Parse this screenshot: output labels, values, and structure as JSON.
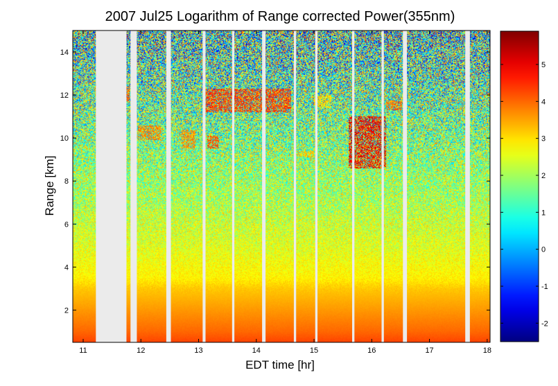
{
  "chart_data": {
    "type": "heatmap",
    "title": "2007 Jul25  Logarithm of Range corrected Power(355nm)",
    "xlabel": "EDT time [hr]",
    "ylabel": "Range [km]",
    "xlim": [
      10.82,
      18.05
    ],
    "ylim": [
      0.5,
      15.0
    ],
    "xticks": [
      "11",
      "12",
      "13",
      "14",
      "15",
      "16",
      "17",
      "18"
    ],
    "yticks": [
      "2",
      "4",
      "6",
      "8",
      "10",
      "12",
      "14"
    ],
    "colorbar": {
      "colormap": "jet",
      "clim": [
        -2.5,
        5.9
      ],
      "ticks": [
        "-2",
        "-1",
        "0",
        "1",
        "2",
        "3",
        "4",
        "5"
      ]
    },
    "no_data_intervals_hr": [
      [
        11.22,
        11.75
      ],
      [
        11.82,
        11.93
      ],
      [
        12.44,
        12.52
      ],
      [
        13.07,
        13.12
      ],
      [
        13.58,
        13.62
      ],
      [
        14.1,
        14.16
      ],
      [
        14.65,
        14.69
      ],
      [
        15.02,
        15.06
      ],
      [
        15.66,
        15.7
      ],
      [
        16.17,
        16.21
      ],
      [
        16.54,
        16.61
      ],
      [
        17.62,
        17.7
      ]
    ],
    "no_data_color": "#ebebeb",
    "value_profile": {
      "range_km": [
        0.5,
        1.0,
        1.5,
        2.0,
        2.5,
        3.0,
        3.5,
        4.0,
        5.0,
        6.0,
        7.0,
        8.0,
        9.0,
        10.0,
        11.0,
        12.0,
        13.0,
        14.0,
        15.0
      ],
      "log_power": [
        4.3,
        4.0,
        3.8,
        3.6,
        3.4,
        3.2,
        2.85,
        2.75,
        2.5,
        2.35,
        2.1,
        2.0,
        1.9,
        1.7,
        1.6,
        1.5,
        1.3,
        1.2,
        1.05
      ]
    },
    "cloud_features": [
      {
        "time_hr": [
          11.75,
          11.8
        ],
        "range_km": [
          11.7,
          12.4
        ],
        "log_power": 4.2
      },
      {
        "time_hr": [
          11.95,
          12.35
        ],
        "range_km": [
          9.9,
          10.6
        ],
        "log_power": 3.8
      },
      {
        "time_hr": [
          12.7,
          12.95
        ],
        "range_km": [
          9.5,
          10.4
        ],
        "log_power": 3.7
      },
      {
        "time_hr": [
          13.15,
          13.35
        ],
        "range_km": [
          9.5,
          10.1
        ],
        "log_power": 4.2
      },
      {
        "time_hr": [
          13.1,
          14.6
        ],
        "range_km": [
          11.2,
          12.3
        ],
        "log_power": 4.4
      },
      {
        "time_hr": [
          14.7,
          15.0
        ],
        "range_km": [
          9.1,
          9.4
        ],
        "log_power": 3.2
      },
      {
        "time_hr": [
          15.0,
          15.3
        ],
        "range_km": [
          11.4,
          12.0
        ],
        "log_power": 3.0
      },
      {
        "time_hr": [
          15.6,
          16.25
        ],
        "range_km": [
          8.6,
          11.0
        ],
        "log_power": 5.0
      },
      {
        "time_hr": [
          16.25,
          16.52
        ],
        "range_km": [
          11.3,
          11.7
        ],
        "log_power": 4.0
      }
    ]
  }
}
